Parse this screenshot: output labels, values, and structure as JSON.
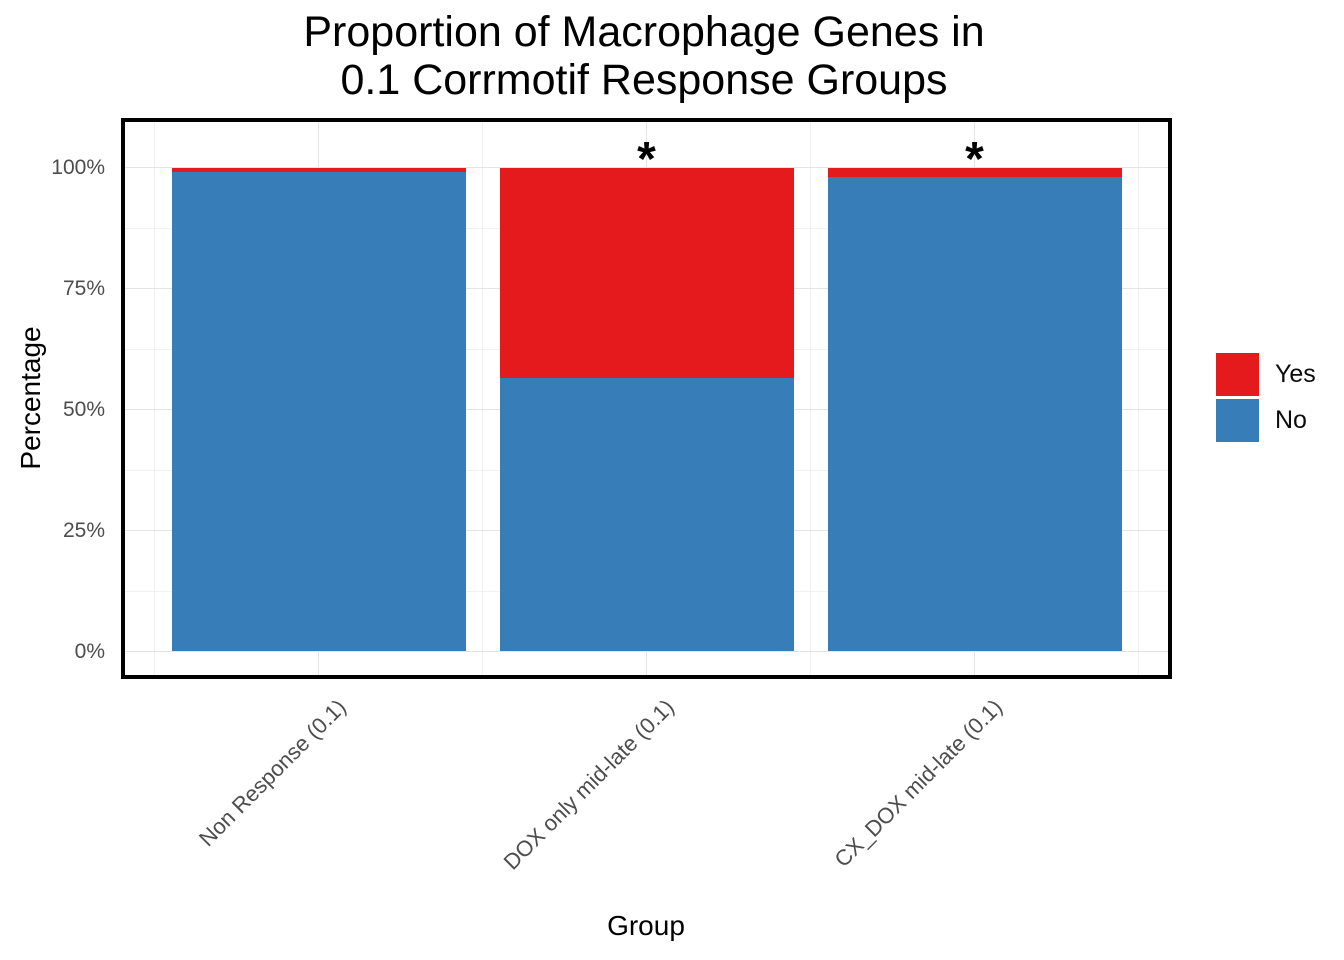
{
  "chart_data": {
    "type": "bar",
    "stacked": true,
    "orientation": "vertical",
    "title": "Proportion of Macrophage Genes in 0.1 Corrmotif Response Groups",
    "title_lines": [
      "Proportion of Macrophage Genes in",
      "0.1 Corrmotif Response Groups"
    ],
    "xlabel": "Group",
    "ylabel": "Percentage",
    "categories": [
      "Non Response (0.1)",
      "DOX only mid-late (0.1)",
      "CX_DOX mid-late (0.1)"
    ],
    "series": [
      {
        "name": "Yes",
        "color": "#E41A1C",
        "values": [
          1,
          43.5,
          2
        ]
      },
      {
        "name": "No",
        "color": "#377EB8",
        "values": [
          99,
          56.5,
          98
        ]
      }
    ],
    "ylim": [
      0,
      100
    ],
    "yticks": [
      "0%",
      "25%",
      "50%",
      "75%",
      "100%"
    ],
    "ytick_pcts": [
      0,
      25,
      50,
      75,
      100
    ],
    "minor_grid_pcts": [
      12.5,
      37.5,
      62.5,
      87.5
    ],
    "grid": true,
    "legend_position": "right",
    "significance": {
      "symbol": "*",
      "flags": [
        false,
        true,
        true
      ]
    }
  },
  "colors": {
    "grid_major": "#E4E4E4",
    "grid_minor": "#F1F1F1",
    "axis_text": "#4D4D4D",
    "panel_border": "#000000"
  }
}
